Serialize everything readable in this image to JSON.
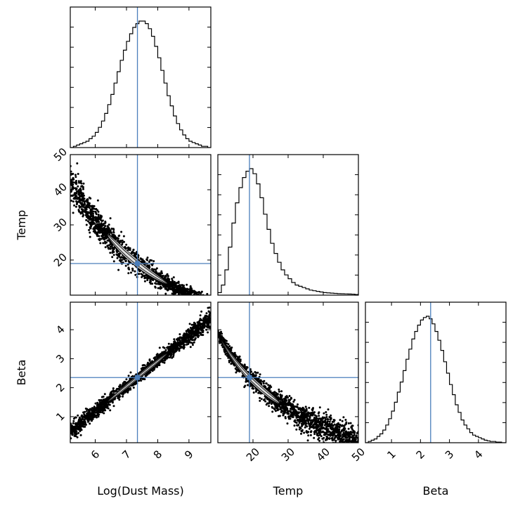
{
  "chart_data": {
    "type": "corner",
    "parameters": [
      {
        "key": "logm",
        "label": "Log(Dust Mass)",
        "range": [
          5.2,
          9.7
        ],
        "ticks": [
          6,
          7,
          8,
          9
        ],
        "truth": 7.35
      },
      {
        "key": "temp",
        "label": "Temp",
        "range": [
          10,
          50
        ],
        "ticks": [
          20,
          30,
          40,
          50
        ],
        "truth": 19.0
      },
      {
        "key": "beta",
        "label": "Beta",
        "range": [
          0.1,
          4.95
        ],
        "ticks": [
          1,
          2,
          3,
          4
        ],
        "truth": 2.35
      }
    ],
    "histograms": [
      {
        "param": "logm",
        "bin_start": 5.2,
        "bin_width": 0.1,
        "counts": [
          0,
          1,
          2,
          3,
          4,
          5,
          7,
          9,
          12,
          16,
          21,
          27,
          34,
          42,
          51,
          60,
          69,
          77,
          84,
          90,
          95,
          98,
          100,
          100,
          98,
          94,
          88,
          80,
          71,
          61,
          51,
          41,
          33,
          25,
          19,
          14,
          10,
          7,
          5,
          4,
          3,
          2,
          1,
          1,
          0
        ]
      },
      {
        "param": "temp",
        "bin_start": 10,
        "bin_width": 1,
        "counts": [
          2,
          8,
          20,
          38,
          57,
          73,
          85,
          93,
          98,
          100,
          96,
          88,
          77,
          64,
          52,
          41,
          33,
          26,
          20,
          16,
          13,
          10,
          8,
          7,
          6,
          5,
          4,
          3.5,
          3,
          2.5,
          2,
          1.8,
          1.6,
          1.4,
          1.2,
          1.1,
          1,
          0.9,
          0.8,
          0.5
        ]
      },
      {
        "param": "beta",
        "bin_start": 0.1,
        "bin_width": 0.1,
        "counts": [
          0,
          1,
          2,
          3,
          5,
          7,
          10,
          14,
          19,
          25,
          32,
          40,
          48,
          57,
          66,
          74,
          82,
          88,
          93,
          97,
          99,
          100,
          98,
          94,
          88,
          81,
          73,
          64,
          55,
          46,
          38,
          30,
          24,
          18,
          14,
          11,
          8,
          6,
          5,
          4,
          3,
          2,
          1.5,
          1,
          1,
          0.5,
          0.5,
          0
        ]
      }
    ],
    "scatter_relations": [
      {
        "x": "logm",
        "y": "temp",
        "relation": "temp = 19 * exp(-0.37 * (logm - 7.35))"
      },
      {
        "x": "logm",
        "y": "beta",
        "relation": "beta = 2.35 + 0.87 * (logm - 7.35)"
      },
      {
        "x": "temp",
        "y": "beta",
        "relation": "beta = 2.35 - 2.35 * ln(temp / 19)"
      }
    ]
  }
}
